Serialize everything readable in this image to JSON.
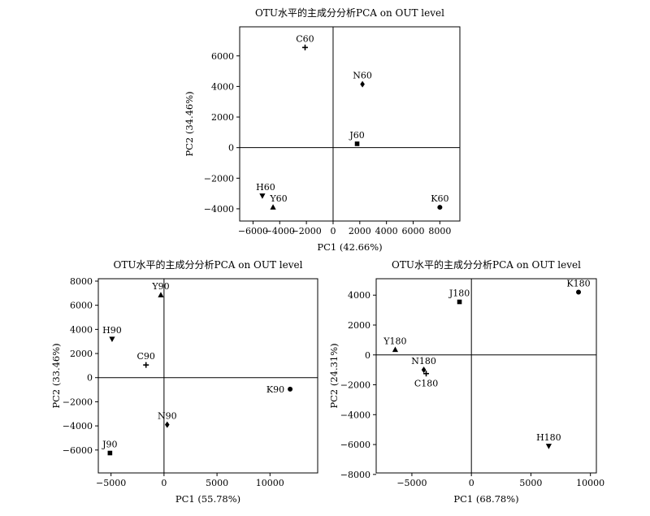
{
  "chart_data": [
    {
      "type": "scatter",
      "title": "OTU水平的主成分分析PCA on OUT level",
      "xlabel": "PC1 (42.66%)",
      "ylabel": "PC2 (34.46%)",
      "xlim": [
        -7000,
        9500
      ],
      "ylim": [
        -4800,
        7900
      ],
      "xticks": [
        -6000,
        -4000,
        -2000,
        0,
        2000,
        4000,
        6000,
        8000
      ],
      "yticks": [
        -4000,
        -2000,
        0,
        2000,
        4000,
        6000
      ],
      "grid": false,
      "zero_lines": true,
      "points": [
        {
          "label": "C60",
          "x": -2100,
          "y": 6550,
          "marker": "plus"
        },
        {
          "label": "N60",
          "x": 2200,
          "y": 4150,
          "marker": "diamond"
        },
        {
          "label": "J60",
          "x": 1800,
          "y": 250,
          "marker": "square"
        },
        {
          "label": "H60",
          "x": -5300,
          "y": -3150,
          "marker": "triangle-down"
        },
        {
          "label": "Y60",
          "x": -4500,
          "y": -3900,
          "marker": "triangle-up"
        },
        {
          "label": "K60",
          "x": 8000,
          "y": -3900,
          "marker": "circle"
        }
      ]
    },
    {
      "type": "scatter",
      "title": "OTU水平的主成分分析PCA on OUT level",
      "xlabel": "PC1 (55.78%)",
      "ylabel": "PC2 (33.46%)",
      "xlim": [
        -6200,
        14500
      ],
      "ylim": [
        -7900,
        8200
      ],
      "xticks": [
        -5000,
        0,
        5000,
        10000
      ],
      "yticks": [
        -6000,
        -4000,
        -2000,
        0,
        2000,
        4000,
        6000,
        8000
      ],
      "grid": false,
      "zero_lines": true,
      "points": [
        {
          "label": "Y90",
          "x": -300,
          "y": 6850,
          "marker": "triangle-up"
        },
        {
          "label": "H90",
          "x": -4900,
          "y": 3200,
          "marker": "triangle-down"
        },
        {
          "label": "C90",
          "x": -1700,
          "y": 1050,
          "marker": "plus"
        },
        {
          "label": "K90",
          "x": 11900,
          "y": -950,
          "marker": "circle"
        },
        {
          "label": "N90",
          "x": 300,
          "y": -3900,
          "marker": "diamond"
        },
        {
          "label": "J90",
          "x": -5100,
          "y": -6250,
          "marker": "square"
        }
      ]
    },
    {
      "type": "scatter",
      "title": "OTU水平的主成分分析PCA on OUT level",
      "xlabel": "PC1 (68.78%)",
      "ylabel": "PC2 (24.31%)",
      "xlim": [
        -8000,
        10500
      ],
      "ylim": [
        -7900,
        5100
      ],
      "xticks": [
        -5000,
        0,
        5000,
        10000
      ],
      "yticks": [
        -8000,
        -6000,
        -4000,
        -2000,
        0,
        2000,
        4000
      ],
      "grid": false,
      "zero_lines": true,
      "points": [
        {
          "label": "K180",
          "x": 9000,
          "y": 4200,
          "marker": "circle"
        },
        {
          "label": "J180",
          "x": -1000,
          "y": 3550,
          "marker": "square"
        },
        {
          "label": "Y180",
          "x": -6400,
          "y": 350,
          "marker": "triangle-up"
        },
        {
          "label": "N180",
          "x": -4000,
          "y": -1000,
          "marker": "diamond"
        },
        {
          "label": "C180",
          "x": -3800,
          "y": -1250,
          "marker": "plus"
        },
        {
          "label": "H180",
          "x": 6500,
          "y": -6100,
          "marker": "triangle-down"
        }
      ]
    }
  ]
}
